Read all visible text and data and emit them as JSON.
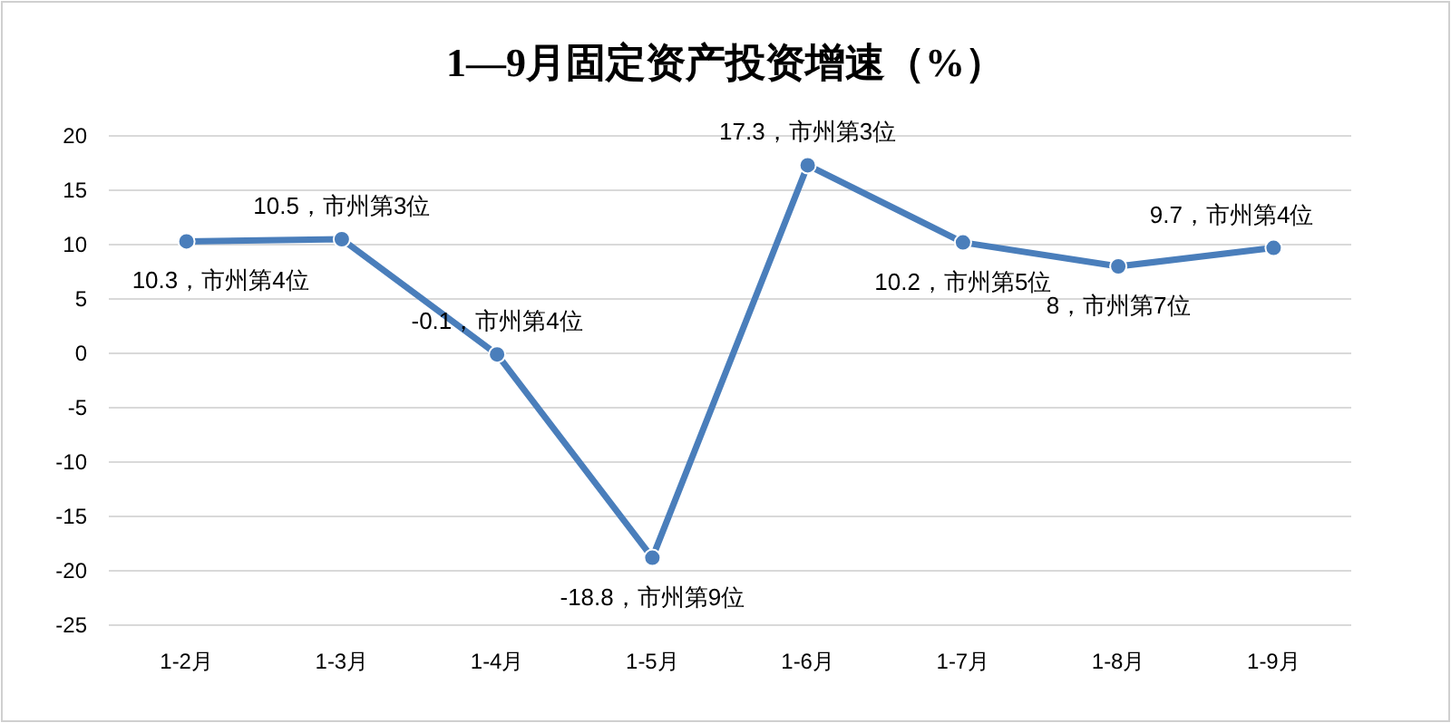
{
  "chart_data": {
    "type": "line",
    "title": "1—9月固定资产投资增速（%）",
    "categories": [
      "1-2月",
      "1-3月",
      "1-4月",
      "1-5月",
      "1-6月",
      "1-7月",
      "1-8月",
      "1-9月"
    ],
    "series": [
      {
        "color": "#4a7ebb",
        "values": [
          10.3,
          10.5,
          -0.1,
          -18.8,
          17.3,
          10.2,
          8,
          9.7
        ],
        "value_labels": [
          "10.3，市州第4位",
          "10.5，市州第3位",
          "-0.1，市州第4位",
          "-18.8，市州第9位",
          "17.3，市州第3位",
          "10.2，市州第5位",
          "8，市州第7位",
          "9.7，市州第4位"
        ]
      }
    ],
    "ylim": [
      -25,
      20
    ],
    "yticks": [
      -25,
      -20,
      -15,
      -10,
      -5,
      0,
      5,
      10,
      15,
      20
    ],
    "grid": "y",
    "marker": "circle"
  }
}
